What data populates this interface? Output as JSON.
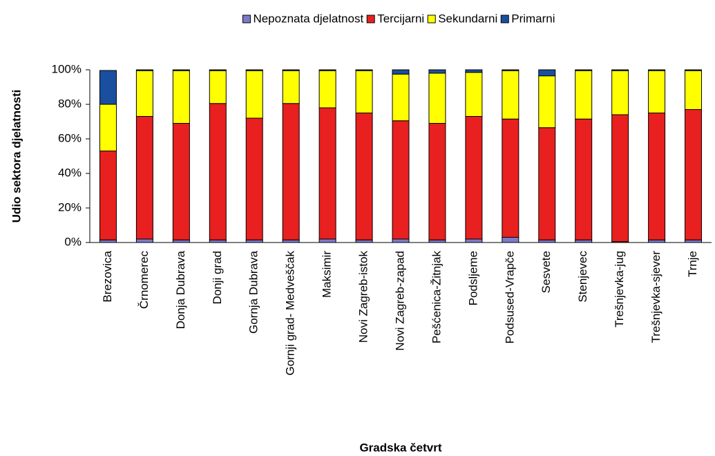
{
  "chart_data": {
    "type": "stacked_bar",
    "x_label": "Gradska četvrt",
    "y_label": "Udio sektora djelatnosti",
    "categories": [
      "Brezovica",
      "Črnomerec",
      "Donja Dubrava",
      "Donji grad",
      "Gornja Dubrava",
      "Gornji grad- Medveščak",
      "Maksimir",
      "Novi Zagreb-istok",
      "Novi Zagreb-zapad",
      "Pešćenica-Žitnjak",
      "Podsljeme",
      "Podsused-Vrapče",
      "Sesvete",
      "Stenjevec",
      "Trešnjevka-jug",
      "Trešnjevka-sjever",
      "Trnje"
    ],
    "series": [
      {
        "name": "Nepoznata djelatnost",
        "color": "#7b7bc8",
        "values": [
          1.5,
          2,
          1.5,
          1.5,
          1.5,
          1.5,
          2,
          1.5,
          2,
          1.5,
          2,
          3,
          1.5,
          1.5,
          0.5,
          1.5,
          1.5
        ]
      },
      {
        "name": "Tercijarni",
        "color": "#e8201f",
        "values": [
          51.5,
          71,
          67.5,
          79,
          70.5,
          79,
          76,
          73.5,
          68.5,
          67.5,
          71,
          68.5,
          65,
          70,
          73.5,
          73.5,
          75.5
        ]
      },
      {
        "name": "Sekundarni",
        "color": "#ffff00",
        "values": [
          27,
          26.5,
          30.5,
          19,
          27.5,
          19,
          21.5,
          24.5,
          27,
          29,
          25.5,
          28,
          30,
          28,
          25.5,
          24.5,
          22.5
        ]
      },
      {
        "name": "Primarni",
        "color": "#1a4fa0",
        "values": [
          19.6,
          0.5,
          0.5,
          0.5,
          0.5,
          0.5,
          0.5,
          0.5,
          2.5,
          2,
          1.5,
          0.5,
          3.5,
          0.5,
          0.5,
          0.5,
          0.5
        ]
      }
    ],
    "ylim": [
      0,
      100
    ],
    "yticks": [
      {
        "value": 0,
        "label": "0%"
      },
      {
        "value": 20,
        "label": "20%"
      },
      {
        "value": 40,
        "label": "40%"
      },
      {
        "value": 60,
        "label": "60%"
      },
      {
        "value": 80,
        "label": "80%"
      },
      {
        "value": 100,
        "label": "100%"
      }
    ],
    "legend": "top"
  }
}
